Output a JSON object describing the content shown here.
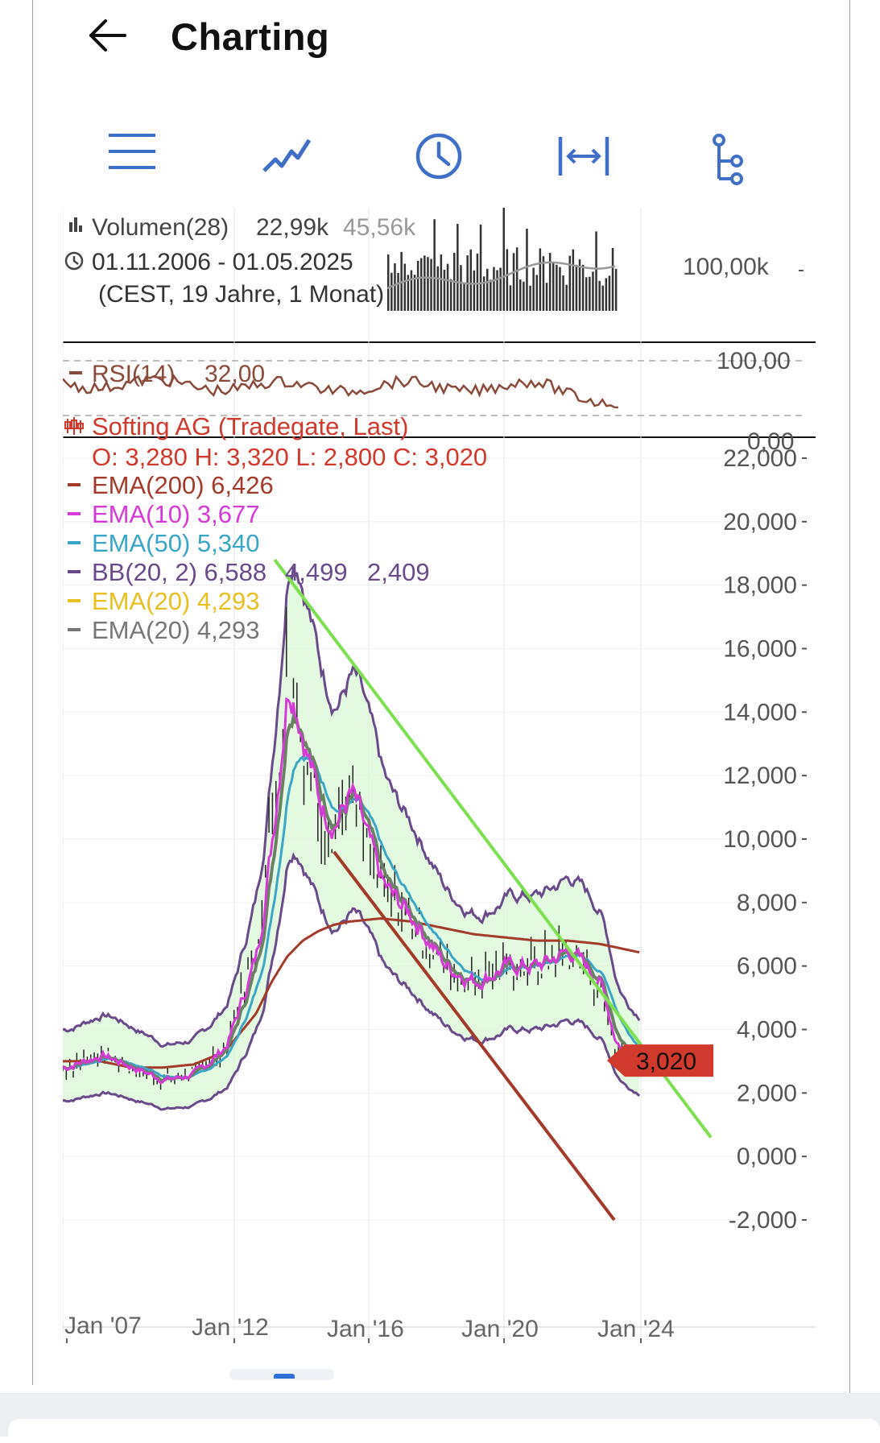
{
  "header": {
    "title": "Charting",
    "back_icon": "arrow-left-icon"
  },
  "toolbar": {
    "icons": [
      "menu-icon",
      "line-chart-icon",
      "clock-icon",
      "range-icon",
      "tree-icon"
    ],
    "accent_color": "#3f6fc7"
  },
  "volume_panel": {
    "label": "Volumen(28)",
    "value1": "22,99k",
    "value2": "45,56k",
    "date_range": "01.11.2006 - 01.05.2025",
    "timezone": "(CEST, 19 Jahre, 1 Monat)",
    "axis_tick": "100,00k"
  },
  "rsi_panel": {
    "label": "RSI(14)",
    "value": "32,00",
    "axis_top": "100,00",
    "axis_bottom": "0,00"
  },
  "price_panel": {
    "name": "Softing AG (Tradegate, Last)",
    "ohlc": "O: 3,280  H: 3,320  L: 2,800  C: 3,020",
    "legend": [
      {
        "label": "EMA(200) 6,426",
        "color": "#a33a2a"
      },
      {
        "label": "EMA(10) 3,677",
        "color": "#d63ad6"
      },
      {
        "label": "EMA(50) 5,340",
        "color": "#3aa6c7"
      },
      {
        "label_a": "BB(20, 2) 6,588",
        "label_b": "4,499",
        "label_c": "2,409",
        "color": "#6a4a8a"
      },
      {
        "label": "EMA(20) 4,293",
        "color": "#e8c020"
      },
      {
        "label": "EMA(20) 4,293",
        "color": "#777777"
      }
    ],
    "last_price": "3,020",
    "y_ticks": [
      "22,000",
      "20,000",
      "18,000",
      "16,000",
      "14,000",
      "12,000",
      "10,000",
      "8,000",
      "6,000",
      "4,000",
      "2,000",
      "0,000",
      "-2,000"
    ],
    "x_ticks": [
      "Jan '07",
      "Jan '12",
      "Jan '16",
      "Jan '20",
      "Jan '24"
    ]
  },
  "chart_data": {
    "type": "line",
    "title": "Softing AG (Tradegate, Last)",
    "x": [
      2006.8,
      2008,
      2009,
      2010,
      2011,
      2012,
      2013,
      2013.5,
      2014,
      2014.5,
      2015,
      2015.5,
      2016,
      2017,
      2018,
      2019,
      2020,
      2021,
      2022,
      2023,
      2024,
      2024.5,
      2025.3
    ],
    "series": [
      {
        "name": "Softing AG (Tradegate, Last)",
        "values": [
          2.8,
          3.2,
          2.8,
          2.4,
          2.6,
          3.5,
          6.5,
          10.5,
          15.5,
          13.0,
          11.0,
          10.5,
          11.5,
          8.5,
          7.5,
          6.0,
          5.5,
          6.0,
          6.0,
          6.5,
          5.5,
          3.5,
          3.02
        ]
      },
      {
        "name": "EMA(200)",
        "values": [
          3.0,
          3.0,
          2.8,
          2.8,
          2.9,
          3.3,
          4.5,
          5.5,
          6.3,
          6.8,
          7.1,
          7.3,
          7.4,
          7.5,
          7.4,
          7.2,
          7.0,
          6.9,
          6.8,
          6.8,
          6.7,
          6.6,
          6.43
        ]
      }
    ],
    "y_range": [
      -2,
      22
    ],
    "x_range": [
      2006.8,
      2025.4
    ],
    "y_axis_side": "right",
    "grid": true
  }
}
